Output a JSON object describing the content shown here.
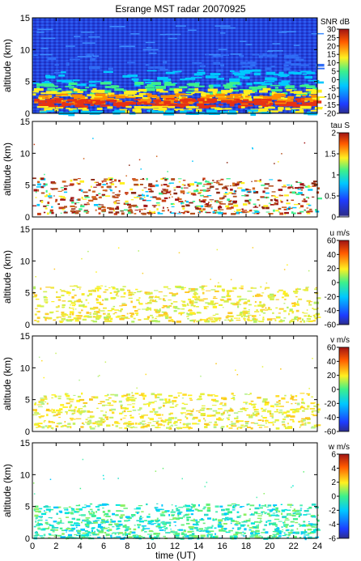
{
  "title": "Esrange MST radar 20070925",
  "chart_data": [
    {
      "type": "heatmap",
      "ylabel": "altitude (km)",
      "ylim": [
        0,
        15
      ],
      "y_ticks": [
        "0",
        "5",
        "10",
        "15"
      ],
      "xlim": [
        0,
        24
      ],
      "colorbar": {
        "label": "SNR dB",
        "range": [
          -20,
          30
        ],
        "ticks": [
          "30",
          "25",
          "20",
          "15",
          "10",
          "5",
          "0",
          "-5",
          "-10",
          "-15",
          "-20"
        ]
      }
    },
    {
      "type": "heatmap",
      "ylabel": "altitude (km)",
      "ylim": [
        0,
        15
      ],
      "y_ticks": [
        "0",
        "5",
        "10",
        "15"
      ],
      "xlim": [
        0,
        24
      ],
      "colorbar": {
        "label": "tau S",
        "range": [
          0,
          2
        ],
        "ticks": [
          "2",
          "1.5",
          "1",
          "0.5",
          "0"
        ]
      }
    },
    {
      "type": "heatmap",
      "ylabel": "altitude (km)",
      "ylim": [
        0,
        15
      ],
      "y_ticks": [
        "0",
        "5",
        "10",
        "15"
      ],
      "xlim": [
        0,
        24
      ],
      "colorbar": {
        "label": "u m/s",
        "range": [
          -60,
          60
        ],
        "ticks": [
          "60",
          "40",
          "20",
          "0",
          "-20",
          "-40",
          "-60"
        ]
      }
    },
    {
      "type": "heatmap",
      "ylabel": "altitude (km)",
      "ylim": [
        0,
        15
      ],
      "y_ticks": [
        "0",
        "5",
        "10",
        "15"
      ],
      "xlim": [
        0,
        24
      ],
      "colorbar": {
        "label": "v m/s",
        "range": [
          -60,
          60
        ],
        "ticks": [
          "60",
          "40",
          "20",
          "0",
          "-20",
          "-40",
          "-60"
        ]
      }
    },
    {
      "type": "heatmap",
      "ylabel": "altitude (km)",
      "ylim": [
        0,
        15
      ],
      "y_ticks": [
        "0",
        "5",
        "10",
        "15"
      ],
      "xlim": [
        0,
        24
      ],
      "colorbar": {
        "label": "w m/s",
        "range": [
          -6,
          6
        ],
        "ticks": [
          "6",
          "4",
          "2",
          "0",
          "-2",
          "-4",
          "-6"
        ]
      }
    }
  ],
  "x_ticks": [
    "0",
    "2",
    "4",
    "6",
    "8",
    "10",
    "12",
    "14",
    "16",
    "18",
    "20",
    "22",
    "24"
  ],
  "xlabel": "time (UT)"
}
